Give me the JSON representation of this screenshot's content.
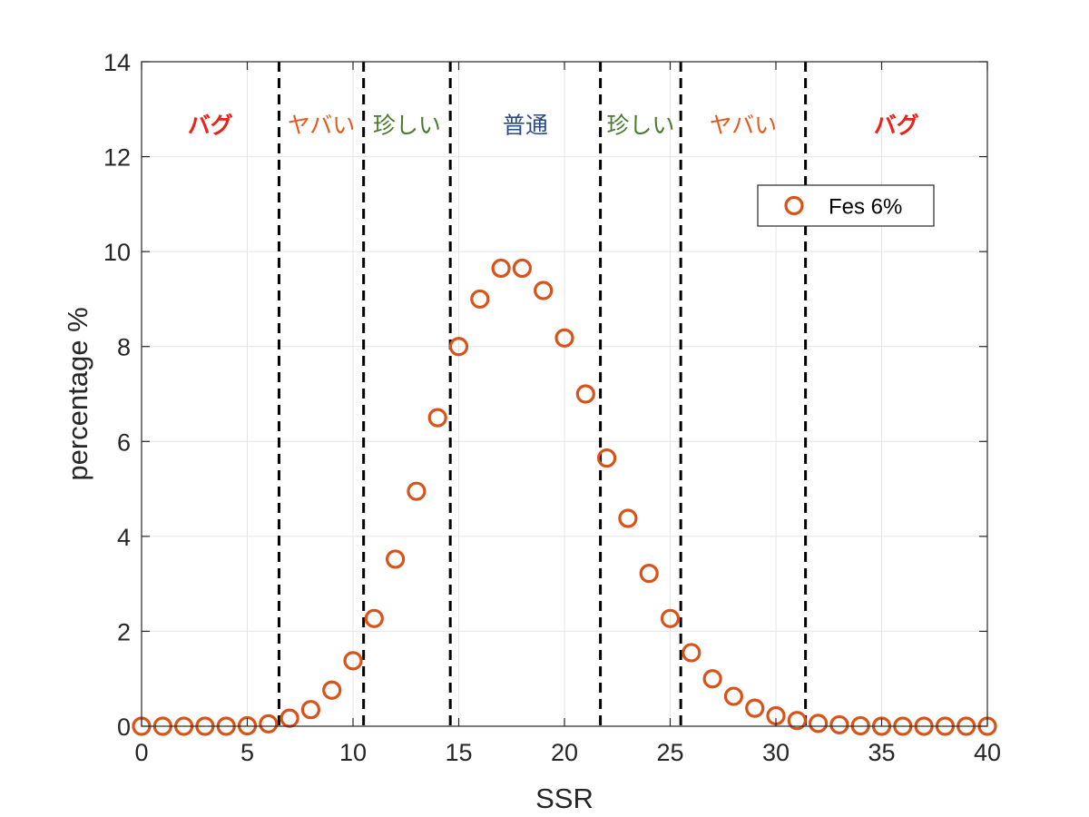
{
  "chart_data": {
    "type": "scatter",
    "xlabel": "SSR",
    "ylabel": "percentage %",
    "xlim": [
      0,
      40
    ],
    "ylim": [
      0,
      14
    ],
    "xticks": [
      0,
      5,
      10,
      15,
      20,
      25,
      30,
      35,
      40
    ],
    "yticks": [
      0,
      2,
      4,
      6,
      8,
      10,
      12,
      14
    ],
    "grid": true,
    "legend_position": "top-right",
    "series": [
      {
        "name": "Fes 6%",
        "color": "#d95319",
        "marker": "circle-open",
        "x": [
          0,
          1,
          2,
          3,
          4,
          5,
          6,
          7,
          8,
          9,
          10,
          11,
          12,
          13,
          14,
          15,
          16,
          17,
          18,
          19,
          20,
          21,
          22,
          23,
          24,
          25,
          26,
          27,
          28,
          29,
          30,
          31,
          32,
          33,
          34,
          35,
          36,
          37,
          38,
          39,
          40
        ],
        "y": [
          0,
          0,
          0,
          0,
          0,
          0.01,
          0.05,
          0.17,
          0.35,
          0.76,
          1.38,
          2.27,
          3.52,
          4.95,
          6.5,
          8.0,
          9.0,
          9.65,
          9.65,
          9.18,
          8.18,
          7.0,
          5.65,
          4.38,
          3.22,
          2.27,
          1.55,
          1.0,
          0.63,
          0.38,
          0.22,
          0.12,
          0.06,
          0.03,
          0.01,
          0,
          0,
          0,
          0,
          0,
          0
        ]
      }
    ],
    "vlines": [
      6.5,
      10.5,
      14.6,
      21.7,
      25.5,
      31.4
    ],
    "regions": [
      {
        "label": "バグ",
        "x": 3.25,
        "color": "#e8231b",
        "bold": true
      },
      {
        "label": "ヤバい",
        "x": 8.5,
        "color": "#e05a1c",
        "bold": false
      },
      {
        "label": "珍しい",
        "x": 12.55,
        "color": "#4a7a2c",
        "bold": false
      },
      {
        "label": "普通",
        "x": 18.15,
        "color": "#2a4a8a",
        "bold": false
      },
      {
        "label": "珍しい",
        "x": 23.6,
        "color": "#4a7a2c",
        "bold": false
      },
      {
        "label": "ヤバい",
        "x": 28.45,
        "color": "#e05a1c",
        "bold": false
      },
      {
        "label": "バグ",
        "x": 35.7,
        "color": "#e8231b",
        "bold": true
      }
    ]
  }
}
